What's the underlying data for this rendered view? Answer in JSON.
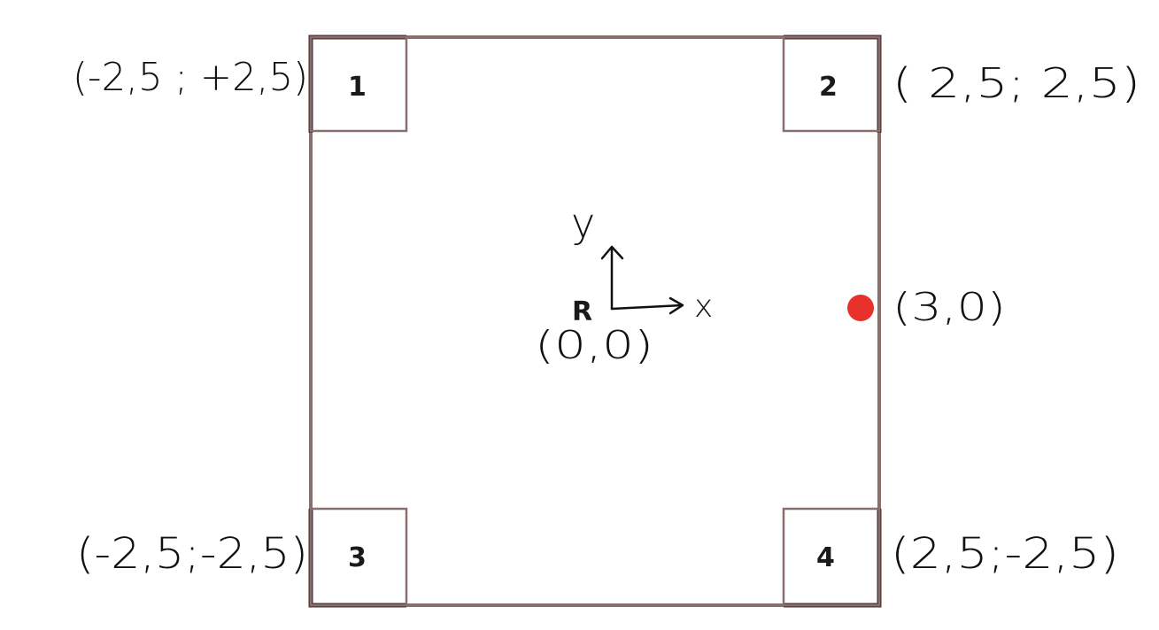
{
  "diagram": {
    "colors": {
      "outline": "#8a6f6f",
      "outline_dark": "#4a3030",
      "ink": "#111111",
      "point": "#e8312a"
    },
    "corners": [
      {
        "id": "1",
        "label": "1",
        "coord": "(-2,5 ; +2,5)"
      },
      {
        "id": "2",
        "label": "2",
        "coord": "( 2,5; 2,5)"
      },
      {
        "id": "3",
        "label": "3",
        "coord": "(-2,5;-2,5)"
      },
      {
        "id": "4",
        "label": "4",
        "coord": "(2,5;-2,5)"
      }
    ],
    "origin": {
      "label": "R",
      "coord": "(0,0)",
      "x_axis": "x",
      "y_axis": "y"
    },
    "point": {
      "coord": "(3,0)"
    }
  }
}
